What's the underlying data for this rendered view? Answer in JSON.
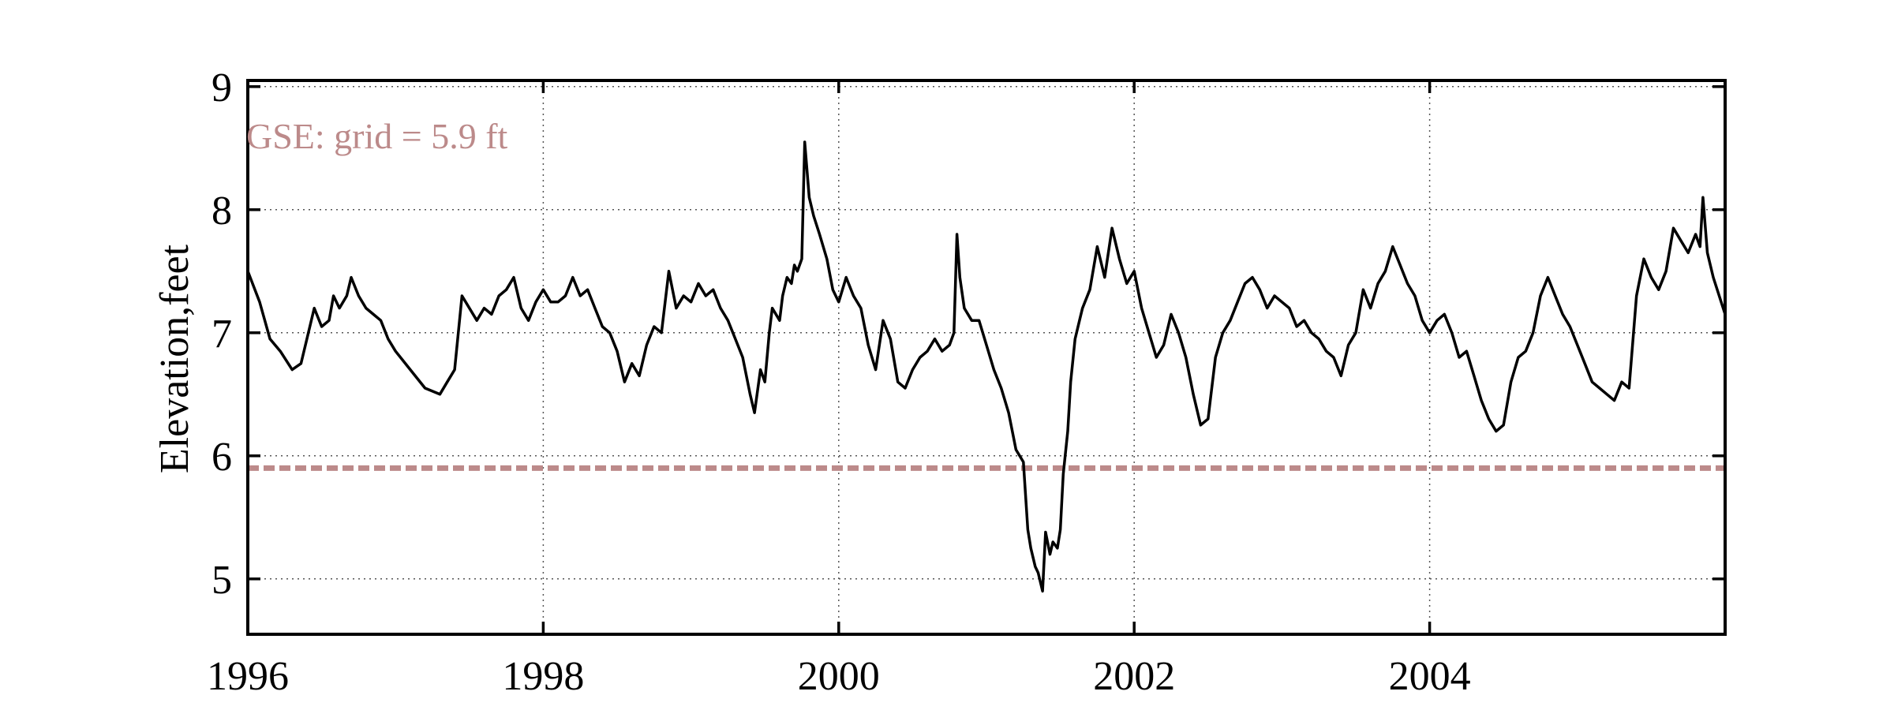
{
  "chart_data": {
    "type": "line",
    "title": "",
    "xlabel": "",
    "ylabel": "Elevation,feet",
    "xlim": [
      1996.0,
      2006.0
    ],
    "ylim": [
      4.55,
      9.05
    ],
    "x_ticks": [
      1996,
      1998,
      2000,
      2002,
      2004
    ],
    "x_tick_labels": [
      "1996",
      "1998",
      "2000",
      "2002",
      "2004"
    ],
    "y_ticks": [
      5,
      6,
      7,
      8,
      9
    ],
    "y_tick_labels": [
      "5",
      "6",
      "7",
      "8",
      "9"
    ],
    "grid": true,
    "annotation": {
      "text": "GSE: grid = 5.9 ft",
      "color": "#bc8a8a"
    },
    "reference_line": {
      "label": "GSE",
      "value": 5.9,
      "style": "dashed",
      "color": "#bc8a8a"
    },
    "series": [
      {
        "color": "#000000",
        "x": [
          1996.0,
          1996.08,
          1996.15,
          1996.22,
          1996.3,
          1996.36,
          1996.4,
          1996.45,
          1996.5,
          1996.55,
          1996.58,
          1996.62,
          1996.67,
          1996.7,
          1996.75,
          1996.8,
          1996.85,
          1996.9,
          1996.95,
          1997.0,
          1997.1,
          1997.2,
          1997.3,
          1997.35,
          1997.4,
          1997.45,
          1997.55,
          1997.6,
          1997.65,
          1997.7,
          1997.75,
          1997.8,
          1997.85,
          1997.9,
          1997.95,
          1998.0,
          1998.05,
          1998.1,
          1998.15,
          1998.2,
          1998.25,
          1998.3,
          1998.35,
          1998.4,
          1998.45,
          1998.5,
          1998.55,
          1998.6,
          1998.65,
          1998.7,
          1998.75,
          1998.8,
          1998.85,
          1998.9,
          1998.95,
          1999.0,
          1999.05,
          1999.1,
          1999.15,
          1999.2,
          1999.25,
          1999.3,
          1999.35,
          1999.4,
          1999.43,
          1999.47,
          1999.5,
          1999.53,
          1999.55,
          1999.6,
          1999.62,
          1999.65,
          1999.68,
          1999.7,
          1999.72,
          1999.75,
          1999.77,
          1999.8,
          1999.83,
          1999.87,
          1999.92,
          1999.96,
          2000.0,
          2000.05,
          2000.1,
          2000.15,
          2000.2,
          2000.25,
          2000.3,
          2000.35,
          2000.4,
          2000.45,
          2000.5,
          2000.55,
          2000.6,
          2000.65,
          2000.7,
          2000.75,
          2000.78,
          2000.8,
          2000.82,
          2000.85,
          2000.9,
          2000.95,
          2001.0,
          2001.05,
          2001.1,
          2001.15,
          2001.2,
          2001.25,
          2001.28,
          2001.3,
          2001.33,
          2001.35,
          2001.38,
          2001.4,
          2001.43,
          2001.45,
          2001.48,
          2001.5,
          2001.52,
          2001.55,
          2001.57,
          2001.6,
          2001.63,
          2001.65,
          2001.7,
          2001.75,
          2001.8,
          2001.85,
          2001.9,
          2001.95,
          2002.0,
          2002.05,
          2002.1,
          2002.15,
          2002.2,
          2002.25,
          2002.3,
          2002.35,
          2002.4,
          2002.45,
          2002.5,
          2002.55,
          2002.6,
          2002.65,
          2002.7,
          2002.75,
          2002.8,
          2002.85,
          2002.9,
          2002.95,
          2003.0,
          2003.05,
          2003.1,
          2003.15,
          2003.2,
          2003.25,
          2003.3,
          2003.35,
          2003.4,
          2003.45,
          2003.5,
          2003.55,
          2003.6,
          2003.65,
          2003.7,
          2003.75,
          2003.8,
          2003.85,
          2003.9,
          2003.95,
          2004.0,
          2004.05,
          2004.1,
          2004.15,
          2004.2,
          2004.25,
          2004.3,
          2004.35,
          2004.4,
          2004.45,
          2004.5,
          2004.55,
          2004.6,
          2004.65,
          2004.7,
          2004.75,
          2004.8,
          2004.85,
          2004.9,
          2004.95,
          2005.0,
          2005.05,
          2005.1,
          2005.15,
          2005.2,
          2005.25,
          2005.3,
          2005.35,
          2005.4,
          2005.45,
          2005.5,
          2005.55,
          2005.6,
          2005.65,
          2005.7,
          2005.75,
          2005.8,
          2005.83,
          2005.85,
          2005.88,
          2005.92,
          2005.96,
          2006.0
        ],
        "y": [
          7.5,
          7.25,
          6.95,
          6.85,
          6.7,
          6.75,
          6.95,
          7.2,
          7.05,
          7.1,
          7.3,
          7.2,
          7.3,
          7.45,
          7.3,
          7.2,
          7.15,
          7.1,
          6.95,
          6.85,
          6.7,
          6.55,
          6.5,
          6.6,
          6.7,
          7.3,
          7.1,
          7.2,
          7.15,
          7.3,
          7.35,
          7.45,
          7.2,
          7.1,
          7.25,
          7.35,
          7.25,
          7.25,
          7.3,
          7.45,
          7.3,
          7.35,
          7.2,
          7.05,
          7.0,
          6.85,
          6.6,
          6.75,
          6.65,
          6.9,
          7.05,
          7.0,
          7.5,
          7.2,
          7.3,
          7.25,
          7.4,
          7.3,
          7.35,
          7.2,
          7.1,
          6.95,
          6.8,
          6.5,
          6.35,
          6.7,
          6.6,
          7.0,
          7.2,
          7.1,
          7.3,
          7.45,
          7.4,
          7.55,
          7.5,
          7.6,
          8.55,
          8.1,
          7.95,
          7.8,
          7.6,
          7.35,
          7.25,
          7.45,
          7.3,
          7.2,
          6.9,
          6.7,
          7.1,
          6.95,
          6.6,
          6.55,
          6.7,
          6.8,
          6.85,
          6.95,
          6.85,
          6.9,
          7.0,
          7.8,
          7.45,
          7.2,
          7.1,
          7.1,
          6.9,
          6.7,
          6.55,
          6.35,
          6.05,
          5.95,
          5.4,
          5.25,
          5.1,
          5.05,
          4.9,
          5.38,
          5.2,
          5.3,
          5.25,
          5.4,
          5.85,
          6.2,
          6.6,
          6.95,
          7.1,
          7.2,
          7.35,
          7.7,
          7.45,
          7.85,
          7.6,
          7.4,
          7.5,
          7.2,
          7.0,
          6.8,
          6.9,
          7.15,
          7.0,
          6.8,
          6.5,
          6.25,
          6.3,
          6.8,
          7.0,
          7.1,
          7.25,
          7.4,
          7.45,
          7.35,
          7.2,
          7.3,
          7.25,
          7.2,
          7.05,
          7.1,
          7.0,
          6.95,
          6.85,
          6.8,
          6.65,
          6.9,
          7.0,
          7.35,
          7.2,
          7.4,
          7.5,
          7.7,
          7.55,
          7.4,
          7.3,
          7.1,
          7.0,
          7.1,
          7.15,
          7.0,
          6.8,
          6.85,
          6.65,
          6.45,
          6.3,
          6.2,
          6.25,
          6.6,
          6.8,
          6.85,
          7.0,
          7.3,
          7.45,
          7.3,
          7.15,
          7.05,
          6.9,
          6.75,
          6.6,
          6.55,
          6.5,
          6.45,
          6.6,
          6.55,
          7.3,
          7.6,
          7.45,
          7.35,
          7.5,
          7.85,
          7.75,
          7.65,
          7.8,
          7.7,
          8.1,
          7.65,
          7.45,
          7.3,
          7.15
        ]
      }
    ]
  }
}
